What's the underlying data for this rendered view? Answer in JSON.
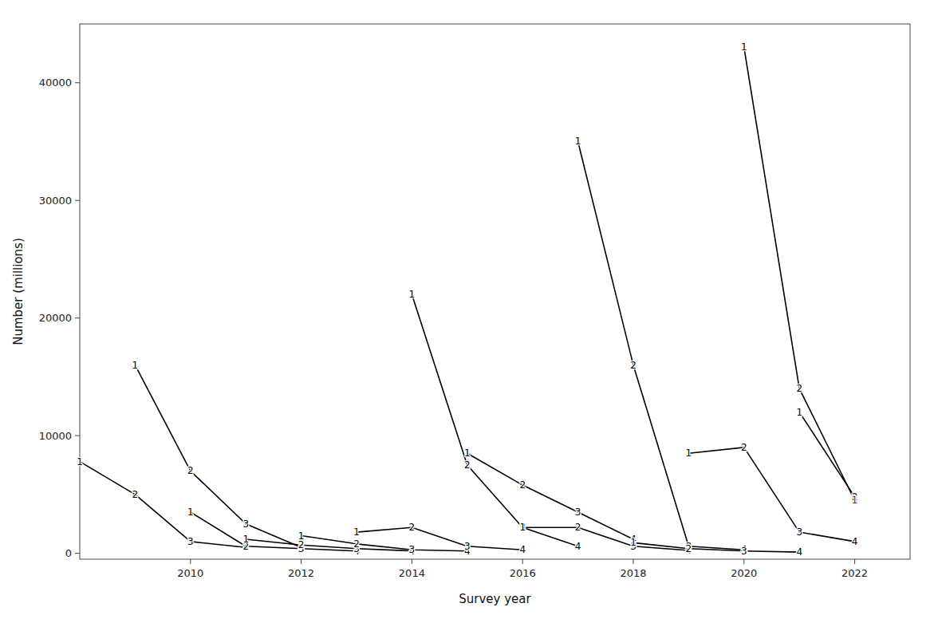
{
  "chart_data": {
    "type": "line",
    "xlabel": "Survey year",
    "ylabel": "Number (millions)",
    "xlim": [
      2008,
      2023
    ],
    "ylim": [
      -500,
      45000
    ],
    "xticks": [
      2010,
      2012,
      2014,
      2016,
      2018,
      2020,
      2022
    ],
    "yticks": [
      0,
      10000,
      20000,
      30000,
      40000
    ],
    "grid": false,
    "series": [
      {
        "color": "#000000",
        "x": [
          2008,
          2009,
          2010,
          2011
        ],
        "values": [
          7800,
          5000,
          1000,
          500
        ],
        "ages": [
          1,
          2,
          3,
          4
        ]
      },
      {
        "color": "#000000",
        "x": [
          2009,
          2010,
          2011,
          2012
        ],
        "values": [
          16000,
          7000,
          2500,
          500
        ],
        "ages": [
          1,
          2,
          3,
          4
        ]
      },
      {
        "color": "#000000",
        "x": [
          2010,
          2011,
          2012,
          2013
        ],
        "values": [
          3500,
          600,
          400,
          200
        ],
        "ages": [
          1,
          2,
          3,
          4
        ]
      },
      {
        "color": "#000000",
        "x": [
          2011,
          2012,
          2013,
          2014
        ],
        "values": [
          1200,
          700,
          400,
          200
        ],
        "ages": [
          1,
          2,
          3,
          4
        ]
      },
      {
        "color": "#000000",
        "x": [
          2012,
          2013,
          2014,
          2015
        ],
        "values": [
          1500,
          800,
          300,
          200
        ],
        "ages": [
          1,
          2,
          3,
          4
        ]
      },
      {
        "color": "#000000",
        "x": [
          2013,
          2014,
          2015,
          2016
        ],
        "values": [
          1800,
          2200,
          600,
          300
        ],
        "ages": [
          1,
          2,
          3,
          4
        ]
      },
      {
        "color": "#000000",
        "x": [
          2014,
          2015,
          2016,
          2017
        ],
        "values": [
          22000,
          7500,
          2200,
          600
        ],
        "ages": [
          1,
          2,
          3,
          4
        ]
      },
      {
        "color": "#000000",
        "x": [
          2015,
          2016,
          2017,
          2018
        ],
        "values": [
          8500,
          5800,
          3500,
          1200
        ],
        "ages": [
          1,
          2,
          3,
          4
        ]
      },
      {
        "color": "#000000",
        "x": [
          2016,
          2017,
          2018,
          2019
        ],
        "values": [
          2200,
          2200,
          600,
          250
        ],
        "ages": [
          1,
          2,
          3,
          4
        ]
      },
      {
        "color": "#000000",
        "x": [
          2017,
          2018,
          2019,
          2020
        ],
        "values": [
          35000,
          16000,
          600,
          300
        ],
        "ages": [
          1,
          2,
          3,
          4
        ]
      },
      {
        "color": "#000000",
        "x": [
          2018,
          2019,
          2020,
          2021
        ],
        "values": [
          900,
          400,
          200,
          100
        ],
        "ages": [
          1,
          2,
          3,
          4
        ]
      },
      {
        "color": "#000000",
        "x": [
          2019,
          2020,
          2021,
          2022
        ],
        "values": [
          8500,
          9000,
          1800,
          1000
        ],
        "ages": [
          1,
          2,
          3,
          4
        ]
      },
      {
        "color": "#000000",
        "x": [
          2020,
          2021,
          2022
        ],
        "values": [
          43000,
          14000,
          4500
        ],
        "ages": [
          1,
          2,
          3
        ]
      },
      {
        "color": "#000000",
        "x": [
          2021,
          2022
        ],
        "values": [
          12000,
          4800
        ],
        "ages": [
          1,
          2
        ]
      },
      {
        "color": "#cc0000",
        "x": [
          2022
        ],
        "values": [
          4500
        ],
        "ages": [
          1
        ]
      }
    ]
  }
}
